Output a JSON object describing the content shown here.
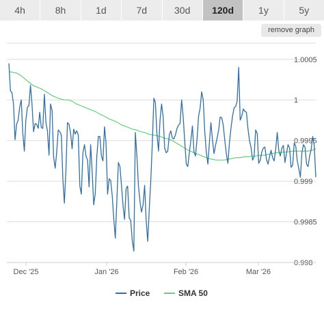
{
  "tabs": [
    "4h",
    "8h",
    "1d",
    "7d",
    "30d",
    "120d",
    "1y",
    "5y"
  ],
  "active_tab": "120d",
  "remove_graph_label": "remove graph",
  "colors": {
    "price": "#2f6fa6",
    "sma": "#66cc7a",
    "grid": "#dddddd"
  },
  "chart_data": {
    "type": "line",
    "x_ticks": [
      "Dec '25",
      "Jan '26",
      "Feb '26",
      "Mar '26"
    ],
    "y_ticks": [
      "1.0005",
      "1",
      "0.9995",
      "0.999",
      "0.9985",
      "0.998"
    ],
    "ylim": [
      0.998,
      1.0007
    ],
    "grid": true,
    "legend_position": "bottom",
    "series": [
      {
        "name": "Price",
        "values": [
          1.00045,
          1.00011,
          1.00009,
          0.99995,
          0.99951,
          0.9997,
          0.99975,
          0.99991,
          1.0,
          0.9996,
          0.99937,
          0.99975,
          0.99991,
          0.99993,
          1.00018,
          0.99995,
          0.99961,
          0.99971,
          0.9997,
          0.99965,
          0.99985,
          0.99966,
          0.99965,
          1.00007,
          0.99972,
          0.99962,
          0.99932,
          0.99995,
          0.99987,
          0.9993,
          0.99916,
          0.99935,
          0.99963,
          0.99961,
          0.99957,
          0.99902,
          0.99873,
          0.99915,
          0.99972,
          0.9997,
          0.99959,
          0.9994,
          0.99964,
          0.99958,
          0.99962,
          0.99957,
          0.99894,
          0.99884,
          0.99935,
          0.99945,
          0.99931,
          0.99926,
          0.99893,
          0.99945,
          0.99912,
          0.99871,
          0.99885,
          0.9993,
          0.99955,
          0.99955,
          0.99931,
          0.99925,
          0.99967,
          0.99947,
          0.99884,
          0.99903,
          0.99901,
          0.99882,
          0.99854,
          0.9983,
          0.99875,
          0.99923,
          0.99918,
          0.99895,
          0.9987,
          0.99853,
          0.99891,
          0.99894,
          0.99855,
          0.99852,
          0.99827,
          0.99814,
          0.9996,
          0.99931,
          0.99895,
          0.99875,
          0.99862,
          0.99871,
          0.99895,
          0.99852,
          0.99826,
          0.99864,
          0.99901,
          0.99946,
          1.00002,
          0.99997,
          0.99958,
          0.99937,
          0.99975,
          0.99995,
          0.9998,
          0.99941,
          0.99935,
          0.99937,
          0.99957,
          0.99962,
          0.99953,
          0.99952,
          0.99957,
          0.99965,
          0.99969,
          0.99971,
          1.0,
          0.99979,
          0.9995,
          0.99921,
          0.99918,
          0.99935,
          0.9995,
          0.99968,
          0.99936,
          0.99931,
          0.99952,
          0.9998,
          0.9999,
          1.0001,
          1.0,
          0.99962,
          0.99936,
          0.99921,
          0.99947,
          0.99972,
          0.99951,
          0.99934,
          0.99944,
          0.99953,
          0.99963,
          0.99979,
          0.99978,
          0.99969,
          0.9995,
          0.99934,
          0.99922,
          0.99947,
          0.99965,
          0.9998,
          0.9999,
          0.99992,
          0.99998,
          1.0004,
          0.99975,
          0.9998,
          0.99989,
          0.99986,
          0.99985,
          0.99965,
          0.9995,
          0.99942,
          0.99926,
          0.9993,
          0.99963,
          0.99959,
          0.99922,
          0.99926,
          0.99936,
          0.99941,
          0.99942,
          0.99927,
          0.99921,
          0.9993,
          0.99938,
          0.99929,
          0.99925,
          0.99939,
          0.9996,
          0.99938,
          0.99931,
          0.99941,
          0.99944,
          0.99923,
          0.99934,
          0.99945,
          0.99941,
          0.99917,
          0.9992,
          0.99947,
          0.99943,
          0.99925,
          0.99915,
          0.99905,
          0.99935,
          0.99945,
          0.99942,
          0.99921,
          0.99918,
          0.99931,
          0.99939,
          0.99955,
          0.99944,
          0.99905
        ]
      },
      {
        "name": "SMA 50",
        "values": [
          1.00035,
          1.00034,
          1.00033,
          1.0003,
          1.00026,
          1.00022,
          1.00018,
          1.00016,
          1.00014,
          1.00011,
          1.00008,
          1.00005,
          1.00003,
          1.00001,
          1.0,
          1.0,
          0.99998,
          0.99995,
          0.99993,
          0.99991,
          0.99989,
          0.99987,
          0.99985,
          0.99982,
          0.9998,
          0.99977,
          0.99975,
          0.99973,
          0.9997,
          0.99968,
          0.99966,
          0.99964,
          0.99963,
          0.99961,
          0.9996,
          0.99958,
          0.99957,
          0.99956,
          0.99955,
          0.99953,
          0.99952,
          0.9995,
          0.99947,
          0.99944,
          0.99941,
          0.99938,
          0.99936,
          0.99934,
          0.99932,
          0.9993,
          0.99928,
          0.99927,
          0.99926,
          0.99926,
          0.99926,
          0.99927,
          0.99928,
          0.99929,
          0.99929,
          0.9993,
          0.9993,
          0.99931,
          0.99931,
          0.99932,
          0.99932,
          0.99933,
          0.99934,
          0.99935,
          0.99935,
          0.99936,
          0.99936,
          0.99937,
          0.99937,
          0.99937,
          0.99937,
          0.99937,
          0.99938,
          0.9994
        ]
      }
    ]
  }
}
